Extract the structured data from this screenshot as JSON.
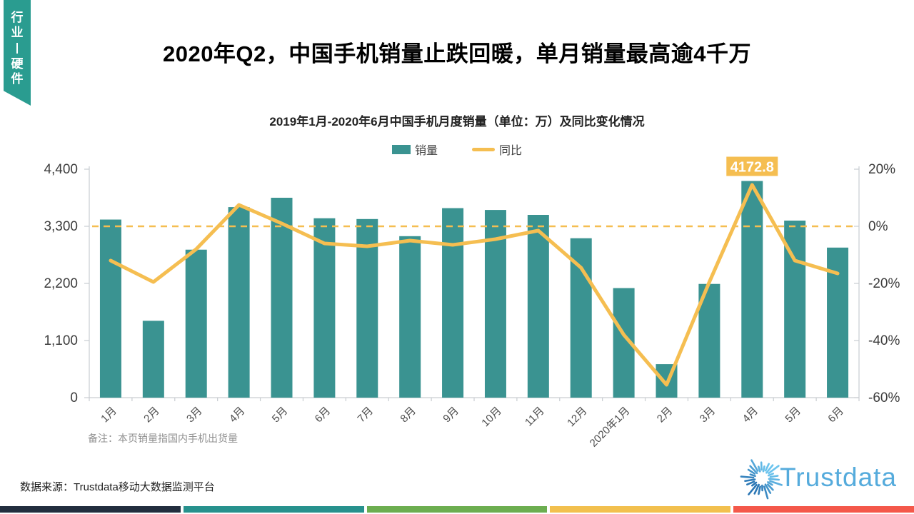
{
  "page": {
    "corner_tab": "行业丨硬件",
    "title": "2020年Q2，中国手机销量止跌回暖，单月销量最高逾4千万",
    "note": "备注：本页销量指国内手机出货量",
    "source": "数据来源：Trustdata移动大数据监测平台",
    "logo_text": "Trustdata"
  },
  "colors": {
    "bar_teal": "#3A9391",
    "tab_teal": "#2A9C90",
    "amber": "#F5BE51",
    "axis_line": "#C9CDD1",
    "axis_text": "#3D3D3D",
    "category_text": "#4D4D4D",
    "logo_blue": "#55ABDC",
    "annotation_text": "#FFFFFF",
    "strip": [
      "#222E3E",
      "#27918D",
      "#6CAE50",
      "#F2C04E",
      "#F4584A"
    ]
  },
  "chart_data": {
    "type": "combo",
    "title": "2019年1月-2020年6月中国手机月度销量（单位：万）及同比变化情况",
    "categories": [
      "1月",
      "2月",
      "3月",
      "4月",
      "5月",
      "6月",
      "7月",
      "8月",
      "9月",
      "10月",
      "11月",
      "12月",
      "2020年1月",
      "2月",
      "3月",
      "4月",
      "5月",
      "6月"
    ],
    "series": [
      {
        "name": "销量",
        "type": "bar",
        "axis": "left",
        "values": [
          3430,
          1480,
          2850,
          3670,
          3850,
          3455,
          3440,
          3110,
          3650,
          3615,
          3520,
          3070,
          2110,
          645,
          2190,
          4172.8,
          3410,
          2890
        ]
      },
      {
        "name": "同比",
        "type": "line",
        "axis": "right",
        "values": [
          -12,
          -19.5,
          -8,
          7.5,
          1,
          -6,
          -7,
          -5,
          -6.5,
          -4.5,
          -1.5,
          -14.5,
          -38,
          -55.5,
          -19.5,
          14.5,
          -12,
          -16.5
        ]
      }
    ],
    "left_axis": {
      "min": 0,
      "max": 4400,
      "ticks": [
        0,
        1100,
        2200,
        3300,
        4400
      ],
      "tick_labels": [
        "0",
        "1,100",
        "2,200",
        "3,300",
        "4,400"
      ]
    },
    "right_axis": {
      "min": -60,
      "max": 20,
      "ticks": [
        -60,
        -40,
        -20,
        0,
        20
      ],
      "tick_labels": [
        "-60%",
        "-40%",
        "-20%",
        "0%",
        "20%"
      ]
    },
    "reference_line": {
      "axis": "right",
      "value": 0,
      "style": "dashed"
    },
    "annotation": {
      "series": "销量",
      "category_index": 15,
      "text": "4172.8"
    },
    "legend_position": "top",
    "grid": false
  }
}
